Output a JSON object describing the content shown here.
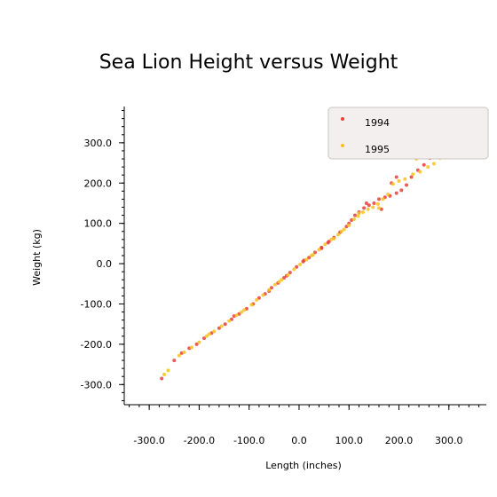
{
  "chart_data": {
    "type": "scatter",
    "title": "Sea Lion Height versus Weight",
    "xlabel": "Length (inches)",
    "ylabel": "Weight (kg)",
    "xlim": [
      -350,
      375
    ],
    "ylim": [
      -350,
      390
    ],
    "x_ticks": [
      "-300.0",
      "-200.0",
      "-100.0",
      "0.0",
      "100.0",
      "200.0",
      "300.0"
    ],
    "y_ticks": [
      "300.0",
      "200.0",
      "100.0",
      "0.0",
      "-100.0",
      "-200.0",
      "-300.0"
    ],
    "grid": false,
    "legend_position": "top-right",
    "series": [
      {
        "name": "1994",
        "color": "#e8403a",
        "points": [
          [
            -275,
            -285
          ],
          [
            -235,
            -222
          ],
          [
            -220,
            -210
          ],
          [
            -205,
            -200
          ],
          [
            -190,
            -185
          ],
          [
            -175,
            -172
          ],
          [
            -160,
            -160
          ],
          [
            -148,
            -150
          ],
          [
            -135,
            -138
          ],
          [
            -120,
            -125
          ],
          [
            -105,
            -112
          ],
          [
            -92,
            -100
          ],
          [
            -80,
            -85
          ],
          [
            -68,
            -75
          ],
          [
            -55,
            -60
          ],
          [
            -42,
            -48
          ],
          [
            -30,
            -35
          ],
          [
            -18,
            -22
          ],
          [
            -5,
            -8
          ],
          [
            8,
            5
          ],
          [
            20,
            15
          ],
          [
            32,
            28
          ],
          [
            45,
            40
          ],
          [
            58,
            52
          ],
          [
            70,
            65
          ],
          [
            82,
            78
          ],
          [
            95,
            92
          ],
          [
            105,
            108
          ],
          [
            112,
            120
          ],
          [
            120,
            128
          ],
          [
            130,
            138
          ],
          [
            140,
            145
          ],
          [
            150,
            150
          ],
          [
            160,
            160
          ],
          [
            172,
            165
          ],
          [
            182,
            168
          ],
          [
            195,
            175
          ],
          [
            205,
            182
          ],
          [
            215,
            195
          ],
          [
            225,
            215
          ],
          [
            238,
            232
          ],
          [
            250,
            245
          ],
          [
            262,
            262
          ],
          [
            275,
            288
          ],
          [
            290,
            288
          ],
          [
            305,
            332
          ],
          [
            315,
            322
          ],
          [
            195,
            215
          ],
          [
            185,
            200
          ],
          [
            165,
            135
          ],
          [
            -250,
            -240
          ],
          [
            -130,
            -130
          ],
          [
            -60,
            -68
          ],
          [
            10,
            8
          ],
          [
            60,
            55
          ],
          [
            100,
            100
          ],
          [
            135,
            150
          ],
          [
            255,
            288
          ],
          [
            -25,
            -30
          ],
          [
            45,
            38
          ]
        ]
      },
      {
        "name": "1995",
        "color": "#f7c21c",
        "points": [
          [
            -270,
            -275
          ],
          [
            -262,
            -265
          ],
          [
            -240,
            -228
          ],
          [
            -215,
            -208
          ],
          [
            -200,
            -195
          ],
          [
            -185,
            -180
          ],
          [
            -170,
            -168
          ],
          [
            -155,
            -155
          ],
          [
            -140,
            -142
          ],
          [
            -125,
            -128
          ],
          [
            -110,
            -115
          ],
          [
            -95,
            -102
          ],
          [
            -85,
            -90
          ],
          [
            -72,
            -78
          ],
          [
            -60,
            -65
          ],
          [
            -48,
            -52
          ],
          [
            -35,
            -40
          ],
          [
            -22,
            -28
          ],
          [
            -10,
            -14
          ],
          [
            2,
            -2
          ],
          [
            15,
            10
          ],
          [
            28,
            22
          ],
          [
            40,
            35
          ],
          [
            52,
            48
          ],
          [
            65,
            60
          ],
          [
            78,
            72
          ],
          [
            90,
            85
          ],
          [
            100,
            95
          ],
          [
            110,
            110
          ],
          [
            118,
            118
          ],
          [
            128,
            128
          ],
          [
            138,
            135
          ],
          [
            148,
            140
          ],
          [
            158,
            148
          ],
          [
            168,
            160
          ],
          [
            178,
            172
          ],
          [
            188,
            198
          ],
          [
            200,
            205
          ],
          [
            212,
            210
          ],
          [
            228,
            222
          ],
          [
            242,
            228
          ],
          [
            258,
            240
          ],
          [
            270,
            248
          ],
          [
            282,
            262
          ],
          [
            295,
            272
          ],
          [
            -230,
            -220
          ],
          [
            -115,
            -120
          ],
          [
            -40,
            -45
          ],
          [
            25,
            20
          ],
          [
            70,
            62
          ],
          [
            120,
            125
          ],
          [
            160,
            138
          ],
          [
            235,
            260
          ],
          [
            -180,
            -175
          ],
          [
            85,
            80
          ]
        ]
      }
    ]
  }
}
